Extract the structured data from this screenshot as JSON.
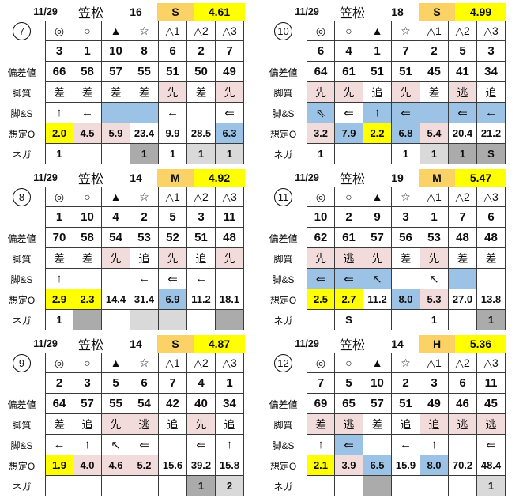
{
  "colors": {
    "yellow": "#ffff00",
    "orange": "#fbd265",
    "pink": "#f2dcdb",
    "blue": "#9cc3e6",
    "gray_light": "#d9d9d9",
    "gray_dark": "#ababab"
  },
  "marks": [
    "◎",
    "○",
    "▲",
    "☆",
    "△1",
    "△2",
    "△3"
  ],
  "row_labels": {
    "hensa": "偏差値",
    "kyaku": "脚質",
    "ashi_s": "脚&S",
    "soutei": "想定O",
    "nega": "ネガ"
  },
  "tables": [
    {
      "id": "7",
      "date": "11/29",
      "venue": "笠松",
      "race": "16",
      "class": "S",
      "value": "4.61",
      "numbers": [
        "3",
        "1",
        "10",
        "8",
        "6",
        "2",
        "7"
      ],
      "hensachi": [
        "66",
        "58",
        "57",
        "55",
        "51",
        "50",
        "49"
      ],
      "kyakushitsu": [
        {
          "t": "差",
          "c": ""
        },
        {
          "t": "差",
          "c": ""
        },
        {
          "t": "差",
          "c": ""
        },
        {
          "t": "差",
          "c": ""
        },
        {
          "t": "先",
          "c": "p"
        },
        {
          "t": "差",
          "c": ""
        },
        {
          "t": "先",
          "c": "p"
        }
      ],
      "ashi_s": [
        {
          "t": "↑",
          "c": ""
        },
        {
          "t": "←",
          "c": ""
        },
        {
          "t": "",
          "c": "b"
        },
        {
          "t": "",
          "c": "b"
        },
        {
          "t": "←",
          "c": ""
        },
        {
          "t": "",
          "c": ""
        },
        {
          "t": "⇐",
          "c": ""
        }
      ],
      "soutei_o": [
        {
          "t": "2.0",
          "c": "y"
        },
        {
          "t": "4.5",
          "c": "p"
        },
        {
          "t": "5.9",
          "c": "p"
        },
        {
          "t": "23.4",
          "c": ""
        },
        {
          "t": "9.9",
          "c": ""
        },
        {
          "t": "28.5",
          "c": ""
        },
        {
          "t": "6.3",
          "c": "b"
        }
      ],
      "nega": [
        {
          "t": "1",
          "c": ""
        },
        {
          "t": "",
          "c": ""
        },
        {
          "t": "",
          "c": ""
        },
        {
          "t": "1",
          "c": "gd"
        },
        {
          "t": "1",
          "c": ""
        },
        {
          "t": "1",
          "c": "gl"
        },
        {
          "t": "1",
          "c": "gl"
        }
      ]
    },
    {
      "id": "10",
      "date": "11/29",
      "venue": "笠松",
      "race": "18",
      "class": "S",
      "value": "4.99",
      "numbers": [
        "6",
        "4",
        "1",
        "7",
        "2",
        "5",
        "3"
      ],
      "hensachi": [
        "64",
        "61",
        "51",
        "51",
        "45",
        "41",
        "34"
      ],
      "kyakushitsu": [
        {
          "t": "先",
          "c": "p"
        },
        {
          "t": "先",
          "c": "p"
        },
        {
          "t": "追",
          "c": ""
        },
        {
          "t": "先",
          "c": "p"
        },
        {
          "t": "差",
          "c": ""
        },
        {
          "t": "逃",
          "c": "p"
        },
        {
          "t": "追",
          "c": ""
        }
      ],
      "ashi_s": [
        {
          "t": "⇖",
          "c": "b"
        },
        {
          "t": "⇐",
          "c": ""
        },
        {
          "t": "↑",
          "c": "b"
        },
        {
          "t": "⇐",
          "c": "b"
        },
        {
          "t": "",
          "c": "b"
        },
        {
          "t": "⇐",
          "c": "b"
        },
        {
          "t": "←",
          "c": "b"
        }
      ],
      "soutei_o": [
        {
          "t": "3.2",
          "c": "p"
        },
        {
          "t": "7.9",
          "c": "b"
        },
        {
          "t": "2.2",
          "c": "y"
        },
        {
          "t": "6.8",
          "c": "b"
        },
        {
          "t": "5.4",
          "c": "p"
        },
        {
          "t": "20.4",
          "c": ""
        },
        {
          "t": "21.2",
          "c": ""
        }
      ],
      "nega": [
        {
          "t": "1",
          "c": ""
        },
        {
          "t": "",
          "c": ""
        },
        {
          "t": "",
          "c": ""
        },
        {
          "t": "1",
          "c": ""
        },
        {
          "t": "1",
          "c": "gl"
        },
        {
          "t": "1",
          "c": "gd"
        },
        {
          "t": "S",
          "c": "gd"
        }
      ]
    },
    {
      "id": "8",
      "date": "11/29",
      "venue": "笠松",
      "race": "14",
      "class": "M",
      "value": "4.92",
      "numbers": [
        "1",
        "10",
        "4",
        "2",
        "5",
        "3",
        "11"
      ],
      "hensachi": [
        "70",
        "58",
        "54",
        "53",
        "52",
        "51",
        "48"
      ],
      "kyakushitsu": [
        {
          "t": "差",
          "c": ""
        },
        {
          "t": "差",
          "c": ""
        },
        {
          "t": "先",
          "c": "p"
        },
        {
          "t": "追",
          "c": ""
        },
        {
          "t": "先",
          "c": "p"
        },
        {
          "t": "追",
          "c": ""
        },
        {
          "t": "先",
          "c": "p"
        }
      ],
      "ashi_s": [
        {
          "t": "↑",
          "c": ""
        },
        {
          "t": "",
          "c": ""
        },
        {
          "t": "",
          "c": ""
        },
        {
          "t": "←",
          "c": ""
        },
        {
          "t": "⇐",
          "c": ""
        },
        {
          "t": "←",
          "c": ""
        },
        {
          "t": "",
          "c": ""
        }
      ],
      "soutei_o": [
        {
          "t": "2.9",
          "c": "y"
        },
        {
          "t": "2.3",
          "c": "y"
        },
        {
          "t": "14.4",
          "c": ""
        },
        {
          "t": "31.4",
          "c": ""
        },
        {
          "t": "6.9",
          "c": "b"
        },
        {
          "t": "11.2",
          "c": ""
        },
        {
          "t": "18.1",
          "c": ""
        }
      ],
      "nega": [
        {
          "t": "1",
          "c": ""
        },
        {
          "t": "",
          "c": "gd"
        },
        {
          "t": "",
          "c": ""
        },
        {
          "t": "",
          "c": "gl"
        },
        {
          "t": "",
          "c": "gl"
        },
        {
          "t": "",
          "c": ""
        },
        {
          "t": "",
          "c": "gd"
        }
      ]
    },
    {
      "id": "11",
      "date": "11/29",
      "venue": "笠松",
      "race": "19",
      "class": "M",
      "value": "5.47",
      "numbers": [
        "10",
        "2",
        "9",
        "3",
        "1",
        "7",
        "6"
      ],
      "hensachi": [
        "62",
        "61",
        "57",
        "56",
        "53",
        "48",
        "48"
      ],
      "kyakushitsu": [
        {
          "t": "先",
          "c": "p"
        },
        {
          "t": "逃",
          "c": "p"
        },
        {
          "t": "先",
          "c": "p"
        },
        {
          "t": "差",
          "c": ""
        },
        {
          "t": "先",
          "c": "p"
        },
        {
          "t": "差",
          "c": ""
        },
        {
          "t": "差",
          "c": ""
        }
      ],
      "ashi_s": [
        {
          "t": "⇐",
          "c": "b"
        },
        {
          "t": "⇐",
          "c": "b"
        },
        {
          "t": "↖",
          "c": "b"
        },
        {
          "t": "",
          "c": ""
        },
        {
          "t": "↖",
          "c": ""
        },
        {
          "t": "",
          "c": "b"
        },
        {
          "t": "",
          "c": ""
        }
      ],
      "soutei_o": [
        {
          "t": "2.5",
          "c": "y"
        },
        {
          "t": "2.7",
          "c": "y"
        },
        {
          "t": "11.2",
          "c": ""
        },
        {
          "t": "8.0",
          "c": "b"
        },
        {
          "t": "5.3",
          "c": "p"
        },
        {
          "t": "27.0",
          "c": ""
        },
        {
          "t": "13.8",
          "c": ""
        }
      ],
      "nega": [
        {
          "t": "",
          "c": ""
        },
        {
          "t": "S",
          "c": ""
        },
        {
          "t": "",
          "c": ""
        },
        {
          "t": "",
          "c": ""
        },
        {
          "t": "1",
          "c": ""
        },
        {
          "t": "",
          "c": ""
        },
        {
          "t": "1",
          "c": "gd"
        }
      ]
    },
    {
      "id": "9",
      "date": "11/29",
      "venue": "笠松",
      "race": "14",
      "class": "S",
      "value": "4.87",
      "numbers": [
        "2",
        "3",
        "5",
        "6",
        "7",
        "4",
        "1"
      ],
      "hensachi": [
        "64",
        "57",
        "55",
        "54",
        "42",
        "40",
        "34"
      ],
      "kyakushitsu": [
        {
          "t": "差",
          "c": ""
        },
        {
          "t": "追",
          "c": ""
        },
        {
          "t": "先",
          "c": "p"
        },
        {
          "t": "逃",
          "c": "p"
        },
        {
          "t": "追",
          "c": ""
        },
        {
          "t": "先",
          "c": "p"
        },
        {
          "t": "追",
          "c": ""
        }
      ],
      "ashi_s": [
        {
          "t": "←",
          "c": ""
        },
        {
          "t": "↑",
          "c": ""
        },
        {
          "t": "↖",
          "c": ""
        },
        {
          "t": "⇐",
          "c": ""
        },
        {
          "t": "",
          "c": ""
        },
        {
          "t": "⇐",
          "c": ""
        },
        {
          "t": "↑",
          "c": ""
        }
      ],
      "soutei_o": [
        {
          "t": "1.9",
          "c": "y"
        },
        {
          "t": "4.0",
          "c": "p"
        },
        {
          "t": "4.6",
          "c": "p"
        },
        {
          "t": "5.2",
          "c": "p"
        },
        {
          "t": "15.6",
          "c": ""
        },
        {
          "t": "39.2",
          "c": ""
        },
        {
          "t": "15.8",
          "c": ""
        }
      ],
      "nega": [
        {
          "t": "",
          "c": ""
        },
        {
          "t": "",
          "c": ""
        },
        {
          "t": "",
          "c": ""
        },
        {
          "t": "",
          "c": ""
        },
        {
          "t": "",
          "c": ""
        },
        {
          "t": "1",
          "c": "gd"
        },
        {
          "t": "2",
          "c": "gl"
        }
      ]
    },
    {
      "id": "12",
      "date": "11/29",
      "venue": "笠松",
      "race": "14",
      "class": "H",
      "value": "5.36",
      "numbers": [
        "7",
        "5",
        "10",
        "2",
        "3",
        "6",
        "11"
      ],
      "hensachi": [
        "69",
        "65",
        "57",
        "51",
        "49",
        "46",
        "45"
      ],
      "kyakushitsu": [
        {
          "t": "差",
          "c": "p"
        },
        {
          "t": "逃",
          "c": "p"
        },
        {
          "t": "差",
          "c": ""
        },
        {
          "t": "追",
          "c": ""
        },
        {
          "t": "追",
          "c": "p"
        },
        {
          "t": "逃",
          "c": "p"
        },
        {
          "t": "逃",
          "c": "p"
        }
      ],
      "ashi_s": [
        {
          "t": "↑",
          "c": ""
        },
        {
          "t": "⇐",
          "c": "b"
        },
        {
          "t": "",
          "c": ""
        },
        {
          "t": "←",
          "c": ""
        },
        {
          "t": "↑",
          "c": ""
        },
        {
          "t": "",
          "c": ""
        },
        {
          "t": "⇐",
          "c": ""
        }
      ],
      "soutei_o": [
        {
          "t": "2.1",
          "c": "y"
        },
        {
          "t": "3.9",
          "c": "p"
        },
        {
          "t": "6.5",
          "c": "b"
        },
        {
          "t": "15.9",
          "c": ""
        },
        {
          "t": "8.0",
          "c": "b"
        },
        {
          "t": "70.2",
          "c": ""
        },
        {
          "t": "48.4",
          "c": ""
        }
      ],
      "nega": [
        {
          "t": "",
          "c": ""
        },
        {
          "t": "",
          "c": ""
        },
        {
          "t": "",
          "c": "gd"
        },
        {
          "t": "",
          "c": ""
        },
        {
          "t": "",
          "c": ""
        },
        {
          "t": "",
          "c": ""
        },
        {
          "t": "1",
          "c": "gl"
        }
      ]
    }
  ]
}
